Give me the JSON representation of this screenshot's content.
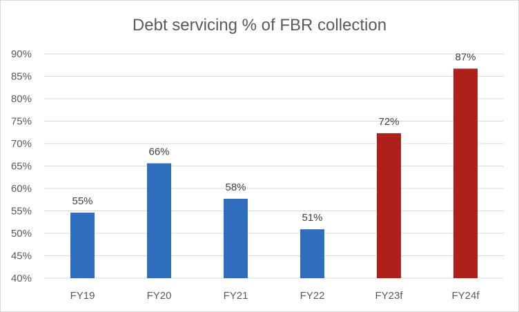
{
  "chart_data": {
    "type": "bar",
    "title": "Debt servicing % of FBR collection",
    "xlabel": "",
    "ylabel": "",
    "categories": [
      "FY19",
      "FY20",
      "FY21",
      "FY22",
      "FY23f",
      "FY24f"
    ],
    "values": [
      54.6,
      65.6,
      57.7,
      50.9,
      72.3,
      86.7
    ],
    "data_labels": [
      "55%",
      "66%",
      "58%",
      "51%",
      "72%",
      "87%"
    ],
    "ylim": [
      40,
      90
    ],
    "yticks": [
      40,
      45,
      50,
      55,
      60,
      65,
      70,
      75,
      80,
      85,
      90
    ],
    "ytick_labels": [
      "40%",
      "45%",
      "50%",
      "55%",
      "60%",
      "65%",
      "70%",
      "75%",
      "80%",
      "85%",
      "90%"
    ],
    "grid": true,
    "legend": "none",
    "colors": [
      "#2f6ebd",
      "#2f6ebd",
      "#2f6ebd",
      "#2f6ebd",
      "#b0201a",
      "#b0201a"
    ]
  }
}
